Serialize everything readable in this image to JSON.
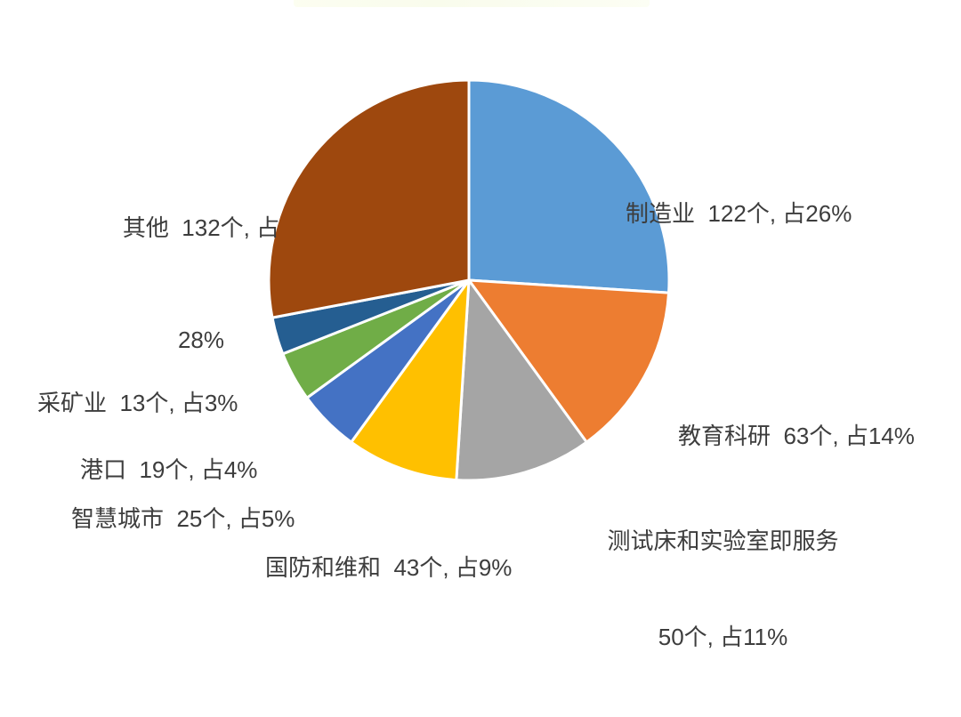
{
  "chart_data": {
    "type": "pie",
    "title": "",
    "unit": "个",
    "start_angle_deg": 0,
    "direction": "clockwise",
    "slice_border_color": "#ffffff",
    "label_text_color": "#3d3d3d",
    "background_color": "#ffffff",
    "slices": [
      {
        "name": "制造业",
        "value": 122,
        "percent": 26,
        "color": "#5B9BD5",
        "label_line1": "制造业  122个, 占26%",
        "label_line2": ""
      },
      {
        "name": "教育科研",
        "value": 63,
        "percent": 14,
        "color": "#ED7D31",
        "label_line1": "教育科研  63个, 占14%",
        "label_line2": ""
      },
      {
        "name": "测试床和实验室即服务",
        "value": 50,
        "percent": 11,
        "color": "#A5A5A5",
        "label_line1": "测试床和实验室即服务",
        "label_line2": "50个, 占11%"
      },
      {
        "name": "国防和维和",
        "value": 43,
        "percent": 9,
        "color": "#FFC000",
        "label_line1": "国防和维和  43个, 占9%",
        "label_line2": ""
      },
      {
        "name": "智慧城市",
        "value": 25,
        "percent": 5,
        "color": "#4472C4",
        "label_line1": "智慧城市  25个, 占5%",
        "label_line2": ""
      },
      {
        "name": "港口",
        "value": 19,
        "percent": 4,
        "color": "#70AD47",
        "label_line1": "港口  19个, 占4%",
        "label_line2": ""
      },
      {
        "name": "采矿业",
        "value": 13,
        "percent": 3,
        "color": "#255E91",
        "label_line1": "采矿业  13个, 占3%",
        "label_line2": ""
      },
      {
        "name": "其他",
        "value": 132,
        "percent": 28,
        "color": "#9E480E",
        "label_line1": "其他  132个, 占",
        "label_line2": "28%"
      }
    ]
  }
}
